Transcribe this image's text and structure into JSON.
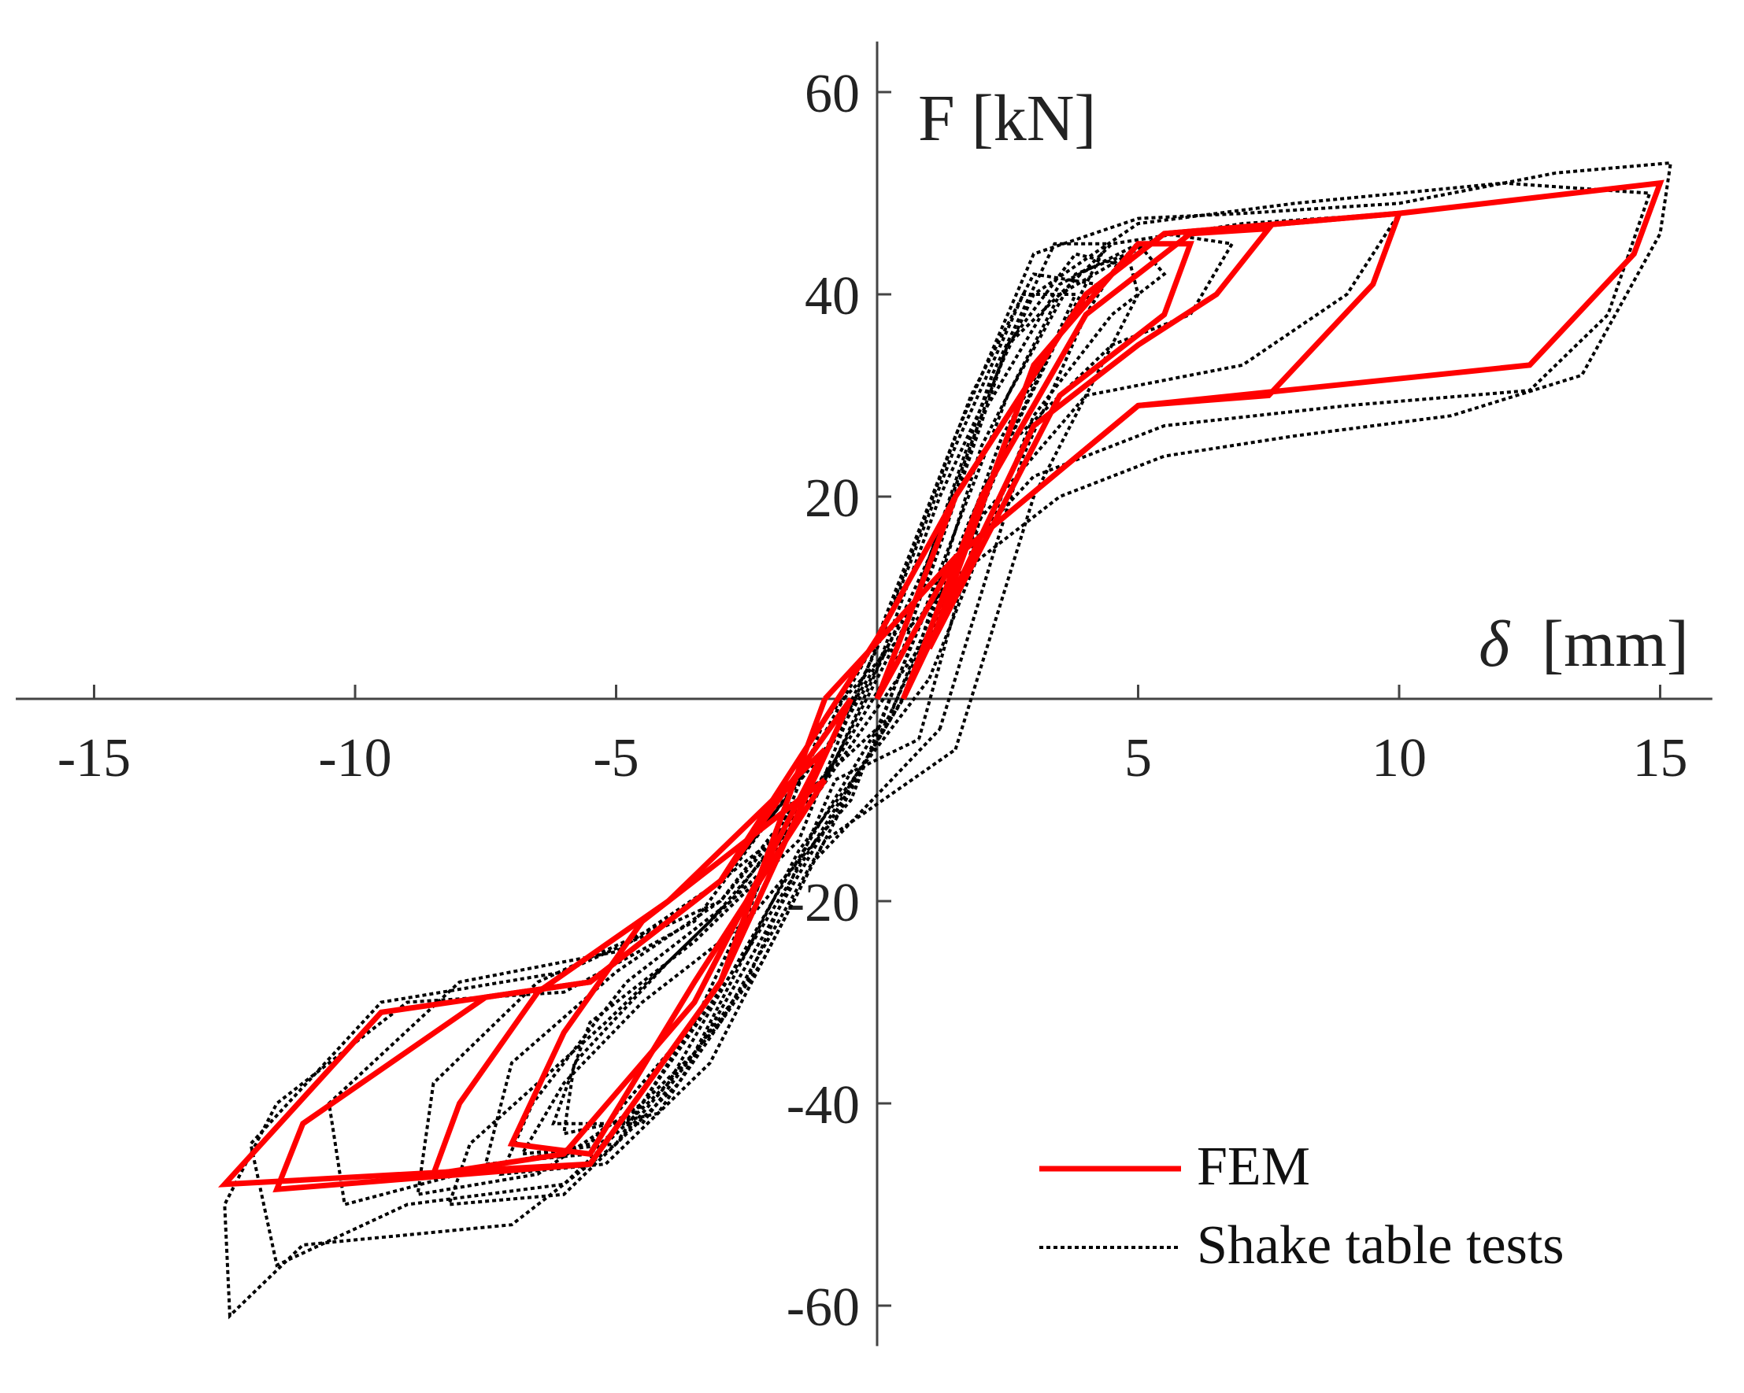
{
  "chart_data": {
    "type": "line",
    "title": "",
    "xlabel_symbol": "δ",
    "xlabel_unit": "[mm]",
    "ylabel": "F [kN]",
    "xlim": [
      -16.5,
      16
    ],
    "ylim": [
      -64,
      65
    ],
    "x_ticks": [
      -15,
      -10,
      -5,
      5,
      10,
      15
    ],
    "x_tick_labels": [
      "-15",
      "-10",
      "-5",
      "5",
      "10",
      "15"
    ],
    "y_ticks": [
      60,
      40,
      20,
      -20,
      -40,
      -60
    ],
    "y_tick_labels": [
      "60",
      "40",
      "20",
      "-20",
      "-40",
      "-60"
    ],
    "grid": false,
    "legend_position": "bottom-right",
    "legend": [
      {
        "label": "FEM",
        "style": "solid",
        "color": "#ff0000"
      },
      {
        "label": "Shake table tests",
        "style": "dotted",
        "color": "#000000"
      }
    ],
    "series": [
      {
        "name": "FEM",
        "color": "#ff0000",
        "loops": [
          [
            [
              -1,
              0
            ],
            [
              1.5,
              14
            ],
            [
              5,
              29
            ],
            [
              12.5,
              33
            ],
            [
              14.5,
              44
            ],
            [
              15,
              51
            ],
            [
              10,
              48
            ],
            [
              5.5,
              46
            ],
            [
              4,
              40
            ],
            [
              1.5,
              20
            ],
            [
              0,
              6
            ],
            [
              -1.5,
              -6
            ],
            [
              -3,
              -18
            ],
            [
              -5.5,
              -28
            ],
            [
              -9.5,
              -31
            ],
            [
              -12.5,
              -48
            ],
            [
              -5.5,
              -46
            ],
            [
              -3,
              -28
            ],
            [
              -1,
              0
            ]
          ],
          [
            [
              0,
              0
            ],
            [
              1.5,
              14
            ],
            [
              5,
              29
            ],
            [
              7.5,
              30
            ],
            [
              9.5,
              41
            ],
            [
              10,
              48
            ],
            [
              5.5,
              46
            ],
            [
              4,
              40
            ],
            [
              1.5,
              20
            ],
            [
              0,
              0
            ]
          ],
          [
            [
              -0.5,
              0
            ],
            [
              -3,
              -18
            ],
            [
              -5.5,
              -28
            ],
            [
              -7.5,
              -29.5
            ],
            [
              -11,
              -42
            ],
            [
              -11.5,
              -48.5
            ],
            [
              -5.5,
              -46
            ],
            [
              -3,
              -28
            ],
            [
              -0.5,
              0
            ]
          ],
          [
            [
              0.5,
              0
            ],
            [
              3,
              27
            ],
            [
              5,
              35
            ],
            [
              6.5,
              40
            ],
            [
              7.5,
              46.5
            ],
            [
              6,
              46
            ],
            [
              4,
              38
            ],
            [
              2,
              20
            ],
            [
              0.5,
              0
            ]
          ],
          [
            [
              -1,
              -5
            ],
            [
              -4,
              -20
            ],
            [
              -6.5,
              -29
            ],
            [
              -8,
              -40
            ],
            [
              -8.5,
              -47
            ],
            [
              -6,
              -45
            ],
            [
              -3.5,
              -30
            ],
            [
              -1,
              -5
            ]
          ],
          [
            [
              1,
              5
            ],
            [
              3.5,
              30
            ],
            [
              5.5,
              38
            ],
            [
              6,
              45
            ],
            [
              5,
              45
            ],
            [
              3,
              33
            ],
            [
              1,
              5
            ]
          ],
          [
            [
              -1,
              -8
            ],
            [
              -4.5,
              -22
            ],
            [
              -6,
              -33
            ],
            [
              -7,
              -44
            ],
            [
              -5.5,
              -45
            ],
            [
              -3.5,
              -28
            ],
            [
              -1,
              -8
            ]
          ]
        ]
      },
      {
        "name": "Shake table tests",
        "color": "#000000",
        "loops": [
          [
            [
              -1,
              -2
            ],
            [
              1.5,
              12
            ],
            [
              3.5,
              20
            ],
            [
              5.5,
              24
            ],
            [
              8,
              26
            ],
            [
              11,
              28
            ],
            [
              13.5,
              32
            ],
            [
              15,
              46
            ],
            [
              15.2,
              53
            ],
            [
              13,
              52
            ],
            [
              10,
              49
            ],
            [
              7,
              48
            ],
            [
              5,
              47.5
            ],
            [
              3,
              44
            ],
            [
              1.5,
              26
            ],
            [
              0,
              6
            ],
            [
              -1.5,
              -8
            ],
            [
              -3.5,
              -22
            ],
            [
              -6,
              -29
            ],
            [
              -9,
              -30
            ],
            [
              -11.5,
              -40
            ],
            [
              -12.5,
              -50
            ],
            [
              -12.4,
              -61
            ],
            [
              -11,
              -54
            ],
            [
              -7,
              -52
            ],
            [
              -5,
              -44
            ],
            [
              -3,
              -28
            ],
            [
              -1,
              -2
            ]
          ],
          [
            [
              0,
              -3
            ],
            [
              1.2,
              12
            ],
            [
              3,
              22
            ],
            [
              5.5,
              27
            ],
            [
              9,
              29
            ],
            [
              12.5,
              30.5
            ],
            [
              14,
              38
            ],
            [
              14.8,
              50
            ],
            [
              12,
              51
            ],
            [
              8,
              49
            ],
            [
              5,
              47
            ],
            [
              3,
              40
            ],
            [
              1.2,
              20
            ],
            [
              0,
              3
            ],
            [
              -1.5,
              -10
            ],
            [
              -3,
              -20
            ],
            [
              -6,
              -27
            ],
            [
              -9.5,
              -30
            ],
            [
              -12,
              -44
            ],
            [
              -11.5,
              -56
            ],
            [
              -9,
              -50
            ],
            [
              -6,
              -48
            ],
            [
              -4,
              -38
            ],
            [
              -2,
              -20
            ],
            [
              0,
              -3
            ]
          ],
          [
            [
              0.2,
              -2
            ],
            [
              2,
              18
            ],
            [
              4,
              30
            ],
            [
              7,
              33
            ],
            [
              9,
              40
            ],
            [
              10,
              48
            ],
            [
              7,
              47
            ],
            [
              4.5,
              45
            ],
            [
              2.5,
              35
            ],
            [
              1,
              12
            ],
            [
              -1,
              -5
            ],
            [
              -3,
              -18
            ],
            [
              -5,
              -25
            ],
            [
              -8,
              -28
            ],
            [
              -10.5,
              -40
            ],
            [
              -10.2,
              -50
            ],
            [
              -8,
              -47
            ],
            [
              -5.5,
              -44
            ],
            [
              -3.5,
              -32
            ],
            [
              -1.5,
              -10
            ],
            [
              0.2,
              -2
            ]
          ],
          [
            [
              0.5,
              0
            ],
            [
              2.5,
              25
            ],
            [
              4.5,
              35
            ],
            [
              6,
              38
            ],
            [
              6.8,
              45
            ],
            [
              5.5,
              46
            ],
            [
              3.5,
              40
            ],
            [
              2,
              25
            ],
            [
              0.8,
              5
            ],
            [
              -1.5,
              -12
            ],
            [
              -4,
              -22
            ],
            [
              -6.5,
              -28
            ],
            [
              -8.5,
              -38
            ],
            [
              -8.8,
              -49
            ],
            [
              -6.5,
              -47
            ],
            [
              -4.5,
              -40
            ],
            [
              -2.5,
              -25
            ],
            [
              0.5,
              0
            ]
          ],
          [
            [
              1,
              2
            ],
            [
              3,
              28
            ],
            [
              4.5,
              38
            ],
            [
              5.5,
              42
            ],
            [
              5,
              45
            ],
            [
              3.5,
              41
            ],
            [
              2,
              28
            ],
            [
              0.5,
              5
            ],
            [
              -1,
              -8
            ],
            [
              -3,
              -20
            ],
            [
              -5,
              -27
            ],
            [
              -7,
              -36
            ],
            [
              -7.5,
              -46
            ],
            [
              -5.5,
              -45
            ],
            [
              -3.5,
              -35
            ],
            [
              -1.5,
              -15
            ],
            [
              1,
              2
            ]
          ],
          [
            [
              0.8,
              -4
            ],
            [
              2.2,
              22
            ],
            [
              3.5,
              36
            ],
            [
              4.2,
              41
            ],
            [
              3,
              42
            ],
            [
              1.8,
              30
            ],
            [
              0.2,
              8
            ],
            [
              -1.5,
              -14
            ],
            [
              -3.5,
              -24
            ],
            [
              -5.5,
              -32
            ],
            [
              -6.2,
              -42
            ],
            [
              -4.5,
              -42
            ],
            [
              -2.5,
              -28
            ],
            [
              -0.8,
              -8
            ],
            [
              0.8,
              -4
            ]
          ],
          [
            [
              1.5,
              -5
            ],
            [
              3,
              20
            ],
            [
              4.2,
              32
            ],
            [
              5,
              40
            ],
            [
              4.8,
              44
            ],
            [
              3.8,
              42
            ],
            [
              2.5,
              30
            ],
            [
              1,
              10
            ],
            [
              -0.5,
              -10
            ],
            [
              -2.5,
              -22
            ],
            [
              -4.5,
              -30
            ],
            [
              -6,
              -38
            ],
            [
              -6.8,
              -45
            ],
            [
              -5,
              -44
            ],
            [
              -3,
              -32
            ],
            [
              -1,
              -14
            ],
            [
              1.5,
              -5
            ]
          ],
          [
            [
              1.2,
              -3
            ],
            [
              2.8,
              24
            ],
            [
              4,
              38
            ],
            [
              4.6,
              43
            ],
            [
              3.8,
              44
            ],
            [
              2.5,
              35
            ],
            [
              1,
              14
            ],
            [
              -0.8,
              -6
            ],
            [
              -2.8,
              -20
            ],
            [
              -4.8,
              -28
            ],
            [
              -6.6,
              -40
            ],
            [
              -7.2,
              -47
            ],
            [
              -5.2,
              -46
            ],
            [
              -3.2,
              -36
            ],
            [
              -1.2,
              -16
            ],
            [
              1.2,
              -3
            ]
          ],
          [
            [
              0.3,
              -1
            ],
            [
              1.8,
              18
            ],
            [
              3.2,
              33
            ],
            [
              3.8,
              40
            ],
            [
              2.8,
              40
            ],
            [
              1.5,
              25
            ],
            [
              0,
              5
            ],
            [
              -2,
              -16
            ],
            [
              -4,
              -26
            ],
            [
              -5.8,
              -36
            ],
            [
              -6,
              -43
            ],
            [
              -4.2,
              -41
            ],
            [
              -2.2,
              -26
            ],
            [
              0.3,
              -1
            ]
          ],
          [
            [
              0.6,
              1
            ],
            [
              2.4,
              26
            ],
            [
              3.6,
              37
            ],
            [
              4.4,
              45
            ],
            [
              3.4,
              45
            ],
            [
              2.2,
              32
            ],
            [
              0.6,
              8
            ],
            [
              -1.2,
              -10
            ],
            [
              -3.2,
              -22
            ],
            [
              -5.2,
              -32
            ],
            [
              -7.8,
              -44
            ],
            [
              -8.2,
              -50
            ],
            [
              -6,
              -49
            ],
            [
              -3.8,
              -38
            ],
            [
              -1.8,
              -20
            ],
            [
              0.6,
              1
            ]
          ]
        ]
      }
    ]
  }
}
